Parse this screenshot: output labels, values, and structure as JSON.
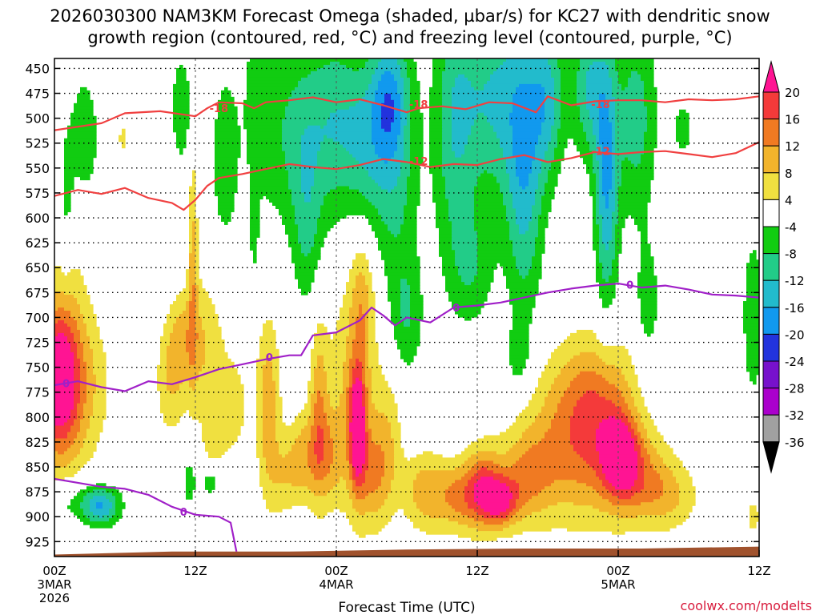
{
  "chart_data": {
    "type": "heatmap",
    "title": "2026030300 NAM3KM Forecast Omega (shaded, µbar/s) for KC27 with dendritic snow",
    "subtitle": "growth region (contoured, red, °C) and freezing level (contoured, purple, °C)",
    "xlabel": "Forecast Time (UTC)",
    "ylabel": "",
    "credit": "coolwx.com/modelts",
    "x_ticks": [
      {
        "hour": 0,
        "label": "00Z",
        "sub1": "3MAR",
        "sub2": "2026"
      },
      {
        "hour": 12,
        "label": "12Z",
        "sub1": "",
        "sub2": ""
      },
      {
        "hour": 24,
        "label": "00Z",
        "sub1": "4MAR",
        "sub2": ""
      },
      {
        "hour": 36,
        "label": "12Z",
        "sub1": "",
        "sub2": ""
      },
      {
        "hour": 48,
        "label": "00Z",
        "sub1": "5MAR",
        "sub2": ""
      },
      {
        "hour": 60,
        "label": "12Z",
        "sub1": "",
        "sub2": ""
      }
    ],
    "xlim": [
      0,
      60
    ],
    "y_ticks": [
      450,
      475,
      500,
      525,
      550,
      575,
      600,
      625,
      650,
      675,
      700,
      725,
      750,
      775,
      800,
      825,
      850,
      875,
      900,
      925
    ],
    "ylim": [
      440,
      940
    ],
    "y_scale": "linear (inverted pressure, mb)",
    "grid": true,
    "colorbar": {
      "levels": [
        "20",
        "16",
        "12",
        "8",
        "4",
        "-4",
        "-8",
        "-12",
        "-16",
        "-20",
        "-24",
        "-28",
        "-32",
        "-36"
      ],
      "colors": [
        "#ff1493",
        "#f43a3a",
        "#f07a22",
        "#f2b42c",
        "#f0e040",
        "#ffffff",
        "#11cc11",
        "#22cc88",
        "#22bbcc",
        "#1199ee",
        "#2233dd",
        "#7711cc",
        "#aa00cc",
        "#a0a0a0",
        "#000000"
      ]
    },
    "omega_blobs": [
      {
        "t": 0.3,
        "p": 760,
        "dt": 1.4,
        "dp": 60,
        "v": 15
      },
      {
        "t": 0.2,
        "p": 790,
        "dt": 2.4,
        "dp": 95,
        "v": 8
      },
      {
        "t": 1.2,
        "p": 720,
        "dt": 2.0,
        "dp": 110,
        "v": 6
      },
      {
        "t": 2.5,
        "p": 770,
        "dt": 2.6,
        "dp": 70,
        "v": 6
      },
      {
        "t": 5.8,
        "p": 520,
        "dt": 0.5,
        "dp": 25,
        "v": 5
      },
      {
        "t": 9.8,
        "p": 765,
        "dt": 1.2,
        "dp": 55,
        "v": 7
      },
      {
        "t": 10.8,
        "p": 720,
        "dt": 1.2,
        "dp": 40,
        "v": 6
      },
      {
        "t": 11.8,
        "p": 640,
        "dt": 0.4,
        "dp": 110,
        "v": 9
      },
      {
        "t": 12.5,
        "p": 730,
        "dt": 2.0,
        "dp": 70,
        "v": 8
      },
      {
        "t": 13.5,
        "p": 820,
        "dt": 1.0,
        "dp": 35,
        "v": 5
      },
      {
        "t": 15.2,
        "p": 790,
        "dt": 1.4,
        "dp": 50,
        "v": 6
      },
      {
        "t": 18.2,
        "p": 790,
        "dt": 1.0,
        "dp": 90,
        "v": 11
      },
      {
        "t": 19.5,
        "p": 860,
        "dt": 1.2,
        "dp": 40,
        "v": 6
      },
      {
        "t": 21.2,
        "p": 840,
        "dt": 1.3,
        "dp": 45,
        "v": 10
      },
      {
        "t": 22.5,
        "p": 790,
        "dt": 0.8,
        "dp": 90,
        "v": 10
      },
      {
        "t": 23.4,
        "p": 840,
        "dt": 1.2,
        "dp": 45,
        "v": 8
      },
      {
        "t": 25.8,
        "p": 810,
        "dt": 0.7,
        "dp": 60,
        "v": 21
      },
      {
        "t": 25.5,
        "p": 780,
        "dt": 2.2,
        "dp": 120,
        "v": 9
      },
      {
        "t": 26.2,
        "p": 680,
        "dt": 1.0,
        "dp": 60,
        "v": 8
      },
      {
        "t": 27.2,
        "p": 860,
        "dt": 1.4,
        "dp": 50,
        "v": 9
      },
      {
        "t": 28.5,
        "p": 820,
        "dt": 1.2,
        "dp": 70,
        "v": 6
      },
      {
        "t": 31.5,
        "p": 875,
        "dt": 1.8,
        "dp": 40,
        "v": 10
      },
      {
        "t": 34.5,
        "p": 880,
        "dt": 2.0,
        "dp": 35,
        "v": 12
      },
      {
        "t": 36.5,
        "p": 870,
        "dt": 1.5,
        "dp": 40,
        "v": 14
      },
      {
        "t": 38.0,
        "p": 885,
        "dt": 1.5,
        "dp": 25,
        "v": 16
      },
      {
        "t": 40.0,
        "p": 860,
        "dt": 2.4,
        "dp": 45,
        "v": 10
      },
      {
        "t": 43.0,
        "p": 830,
        "dt": 3.5,
        "dp": 75,
        "v": 9
      },
      {
        "t": 46.5,
        "p": 820,
        "dt": 3.0,
        "dp": 80,
        "v": 11
      },
      {
        "t": 48.2,
        "p": 840,
        "dt": 1.5,
        "dp": 40,
        "v": 17
      },
      {
        "t": 50.0,
        "p": 860,
        "dt": 2.5,
        "dp": 45,
        "v": 10
      },
      {
        "t": 52.5,
        "p": 880,
        "dt": 2.5,
        "dp": 35,
        "v": 7
      },
      {
        "t": 46.0,
        "p": 770,
        "dt": 4.0,
        "dp": 60,
        "v": 6
      },
      {
        "t": 59.5,
        "p": 900,
        "dt": 0.9,
        "dp": 25,
        "v": 5
      },
      {
        "t": 1.5,
        "p": 885,
        "dt": 3.5,
        "dp": 25,
        "v": -7
      },
      {
        "t": 4.0,
        "p": 890,
        "dt": 1.5,
        "dp": 18,
        "v": -13
      },
      {
        "t": 11.5,
        "p": 865,
        "dt": 0.6,
        "dp": 30,
        "v": -6
      },
      {
        "t": 13.2,
        "p": 865,
        "dt": 0.8,
        "dp": 15,
        "v": -7
      },
      {
        "t": 2.5,
        "p": 520,
        "dt": 1.6,
        "dp": 80,
        "v": -6
      },
      {
        "t": 1.0,
        "p": 590,
        "dt": 0.6,
        "dp": 70,
        "v": -5
      },
      {
        "t": 10.8,
        "p": 490,
        "dt": 0.9,
        "dp": 60,
        "v": -7
      },
      {
        "t": 14.5,
        "p": 540,
        "dt": 1.2,
        "dp": 90,
        "v": -7
      },
      {
        "t": 17.5,
        "p": 480,
        "dt": 1.6,
        "dp": 110,
        "v": -6
      },
      {
        "t": 17.0,
        "p": 610,
        "dt": 0.4,
        "dp": 60,
        "v": -5
      },
      {
        "t": 21.0,
        "p": 520,
        "dt": 2.5,
        "dp": 100,
        "v": -10
      },
      {
        "t": 21.5,
        "p": 620,
        "dt": 1.2,
        "dp": 80,
        "v": -6
      },
      {
        "t": 24.0,
        "p": 500,
        "dt": 2.0,
        "dp": 100,
        "v": -8
      },
      {
        "t": 26.5,
        "p": 520,
        "dt": 2.0,
        "dp": 80,
        "v": -10
      },
      {
        "t": 29.0,
        "p": 540,
        "dt": 2.0,
        "dp": 130,
        "v": -10
      },
      {
        "t": 30.0,
        "p": 700,
        "dt": 1.4,
        "dp": 60,
        "v": -7
      },
      {
        "t": 34.0,
        "p": 510,
        "dt": 1.8,
        "dp": 130,
        "v": -10
      },
      {
        "t": 35.5,
        "p": 650,
        "dt": 2.0,
        "dp": 60,
        "v": -7
      },
      {
        "t": 37.5,
        "p": 480,
        "dt": 3.0,
        "dp": 100,
        "v": -12
      },
      {
        "t": 40.0,
        "p": 560,
        "dt": 1.6,
        "dp": 140,
        "v": -13
      },
      {
        "t": 42.0,
        "p": 480,
        "dt": 1.5,
        "dp": 80,
        "v": -12
      },
      {
        "t": 45.5,
        "p": 470,
        "dt": 1.4,
        "dp": 70,
        "v": -12
      },
      {
        "t": 47.0,
        "p": 560,
        "dt": 1.0,
        "dp": 130,
        "v": -16
      },
      {
        "t": 49.5,
        "p": 500,
        "dt": 1.8,
        "dp": 100,
        "v": -10
      },
      {
        "t": 50.5,
        "p": 690,
        "dt": 1.2,
        "dp": 70,
        "v": -6
      },
      {
        "t": 53.5,
        "p": 510,
        "dt": 0.8,
        "dp": 25,
        "v": -7
      },
      {
        "t": 59.5,
        "p": 700,
        "dt": 1.0,
        "dp": 90,
        "v": -7
      },
      {
        "t": 39.5,
        "p": 740,
        "dt": 1.0,
        "dp": 30,
        "v": -6
      },
      {
        "t": 28.5,
        "p": 480,
        "dt": 1.5,
        "dp": 60,
        "v": -10
      }
    ],
    "contour_minus18": [
      [
        0,
        512
      ],
      [
        4,
        505
      ],
      [
        6,
        495
      ],
      [
        9,
        493
      ],
      [
        12,
        498
      ],
      [
        13,
        490
      ],
      [
        14,
        484
      ],
      [
        16,
        485
      ],
      [
        17,
        490
      ],
      [
        18,
        484
      ],
      [
        20,
        482
      ],
      [
        22,
        479
      ],
      [
        24,
        484
      ],
      [
        26,
        481
      ],
      [
        28,
        487
      ],
      [
        30,
        494
      ],
      [
        31,
        490
      ],
      [
        33,
        488
      ],
      [
        35,
        491
      ],
      [
        37,
        484
      ],
      [
        39,
        485
      ],
      [
        41,
        494
      ],
      [
        42,
        478
      ],
      [
        44,
        487
      ],
      [
        46,
        483
      ],
      [
        48,
        482
      ],
      [
        50,
        482
      ],
      [
        52,
        484
      ],
      [
        54,
        481
      ],
      [
        56,
        482
      ],
      [
        58,
        481
      ],
      [
        60,
        478
      ]
    ],
    "contour_minus12": [
      [
        0,
        578
      ],
      [
        2,
        572
      ],
      [
        4,
        576
      ],
      [
        6,
        570
      ],
      [
        8,
        580
      ],
      [
        10,
        585
      ],
      [
        11,
        592
      ],
      [
        12,
        582
      ],
      [
        13,
        568
      ],
      [
        14,
        560
      ],
      [
        16,
        556
      ],
      [
        18,
        551
      ],
      [
        20,
        546
      ],
      [
        22,
        549
      ],
      [
        24,
        551
      ],
      [
        26,
        547
      ],
      [
        28,
        541
      ],
      [
        30,
        544
      ],
      [
        32,
        549
      ],
      [
        34,
        546
      ],
      [
        36,
        547
      ],
      [
        38,
        541
      ],
      [
        40,
        537
      ],
      [
        42,
        544
      ],
      [
        44,
        540
      ],
      [
        46,
        534
      ],
      [
        48,
        536
      ],
      [
        50,
        534
      ],
      [
        52,
        533
      ],
      [
        54,
        536
      ],
      [
        56,
        539
      ],
      [
        58,
        535
      ],
      [
        60,
        524
      ]
    ],
    "contour_zero_upper": [
      [
        0,
        768
      ],
      [
        2,
        764
      ],
      [
        4,
        770
      ],
      [
        6,
        774
      ],
      [
        8,
        764
      ],
      [
        10,
        767
      ],
      [
        12,
        760
      ],
      [
        14,
        752
      ],
      [
        16,
        747
      ],
      [
        18,
        742
      ],
      [
        20,
        738
      ],
      [
        21,
        738
      ],
      [
        22,
        718
      ],
      [
        24,
        715
      ],
      [
        26,
        703
      ],
      [
        27,
        690
      ],
      [
        28,
        698
      ],
      [
        29,
        708
      ],
      [
        30,
        700
      ],
      [
        32,
        705
      ],
      [
        34,
        690
      ],
      [
        36,
        688
      ],
      [
        38,
        685
      ],
      [
        40,
        680
      ],
      [
        42,
        675
      ],
      [
        44,
        671
      ],
      [
        46,
        668
      ],
      [
        48,
        666
      ],
      [
        50,
        670
      ],
      [
        52,
        668
      ],
      [
        54,
        672
      ],
      [
        56,
        677
      ],
      [
        58,
        678
      ],
      [
        60,
        680
      ]
    ],
    "contour_zero_lower": [
      [
        0,
        862
      ],
      [
        2,
        866
      ],
      [
        4,
        870
      ],
      [
        6,
        872
      ],
      [
        8,
        878
      ],
      [
        10,
        890
      ],
      [
        12,
        898
      ],
      [
        14,
        900
      ],
      [
        15,
        906
      ],
      [
        15.5,
        935
      ]
    ],
    "contour_labels": [
      {
        "text": "-18",
        "t": 14.0,
        "p": 490,
        "color": "#f04040"
      },
      {
        "text": "-18",
        "t": 31.0,
        "p": 486,
        "color": "#f04040"
      },
      {
        "text": "-18",
        "t": 46.5,
        "p": 486,
        "color": "#f04040"
      },
      {
        "text": "-12",
        "t": 31.0,
        "p": 543,
        "color": "#f04040"
      },
      {
        "text": "-12",
        "t": 46.5,
        "p": 533,
        "color": "#f04040"
      },
      {
        "text": "0",
        "t": 1.0,
        "p": 766,
        "color": "#a020c8"
      },
      {
        "text": "0",
        "t": 18.3,
        "p": 740,
        "color": "#a020c8"
      },
      {
        "text": "0",
        "t": 34.2,
        "p": 690,
        "color": "#a020c8"
      },
      {
        "text": "0",
        "t": 49.0,
        "p": 667,
        "color": "#a020c8"
      },
      {
        "text": "0",
        "t": 11.0,
        "p": 895,
        "color": "#a020c8"
      }
    ],
    "terrain": [
      [
        0,
        938
      ],
      [
        10,
        935
      ],
      [
        20,
        935
      ],
      [
        30,
        933
      ],
      [
        40,
        932
      ],
      [
        50,
        932
      ],
      [
        55,
        931
      ],
      [
        60,
        930
      ]
    ]
  }
}
